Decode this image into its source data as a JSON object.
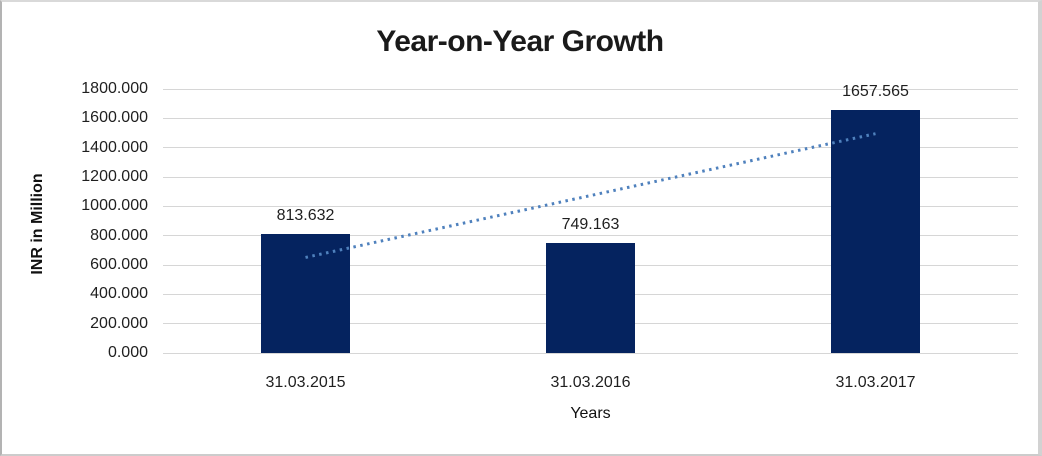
{
  "chart_data": {
    "type": "bar",
    "title": "Year-on-Year Growth",
    "xlabel": "Years",
    "ylabel": "INR in Million",
    "categories": [
      "31.03.2015",
      "31.03.2016",
      "31.03.2017"
    ],
    "values": [
      813.632,
      749.163,
      1657.565
    ],
    "value_labels": [
      "813.632",
      "749.163",
      "1657.565"
    ],
    "yticks": [
      "1800.000",
      "1600.000",
      "1400.000",
      "1200.000",
      "1000.000",
      "800.000",
      "600.000",
      "400.000",
      "200.000",
      "0.000"
    ],
    "ylim": [
      0,
      1800
    ],
    "ytick_step": 200,
    "grid": "horizontal",
    "legend": "none",
    "bar_color": "#05235f",
    "gridline_color": "#d6d6d6",
    "trendline": {
      "type": "linear",
      "style": "dotted",
      "color": "#4f81bd"
    }
  }
}
